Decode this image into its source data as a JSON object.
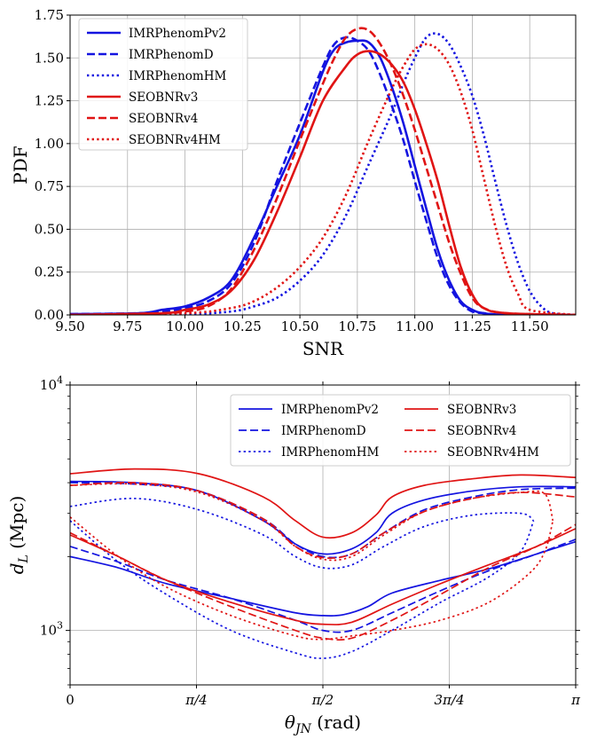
{
  "colors": {
    "IMRPhenom": "#1414e0",
    "SEOBNR": "#e01414"
  },
  "chart_data": [
    {
      "type": "line",
      "xlabel": "SNR",
      "ylabel": "PDF",
      "xlim": [
        9.5,
        11.7
      ],
      "ylim": [
        0.0,
        1.75
      ],
      "xticks": [
        9.5,
        9.75,
        10.0,
        10.25,
        10.5,
        10.75,
        11.0,
        11.25,
        11.5
      ],
      "xtick_labels": [
        "9.50",
        "9.75",
        "10.00",
        "10.25",
        "10.50",
        "10.75",
        "11.00",
        "11.25",
        "11.50"
      ],
      "yticks": [
        0.0,
        0.25,
        0.5,
        0.75,
        1.0,
        1.25,
        1.5,
        1.75
      ],
      "ytick_labels": [
        "0.00",
        "0.25",
        "0.50",
        "0.75",
        "1.00",
        "1.25",
        "1.50",
        "1.75"
      ],
      "grid": true,
      "legend_position": "top-left",
      "series": [
        {
          "name": "IMRPhenomPv2",
          "color": "#1414e0",
          "style": "solid",
          "x": [
            9.5,
            9.8,
            9.9,
            10.0,
            10.1,
            10.2,
            10.3,
            10.4,
            10.5,
            10.6,
            10.65,
            10.7,
            10.75,
            10.8,
            10.85,
            10.9,
            10.95,
            11.0,
            11.05,
            11.1,
            11.15,
            11.2,
            11.25,
            11.3,
            11.4,
            11.7
          ],
          "y": [
            0.005,
            0.01,
            0.03,
            0.05,
            0.1,
            0.2,
            0.45,
            0.75,
            1.05,
            1.42,
            1.55,
            1.59,
            1.6,
            1.59,
            1.5,
            1.33,
            1.12,
            0.87,
            0.62,
            0.38,
            0.2,
            0.08,
            0.03,
            0.01,
            0.0,
            0.0
          ]
        },
        {
          "name": "IMRPhenomD",
          "color": "#1414e0",
          "style": "dashed",
          "x": [
            9.5,
            9.8,
            9.9,
            10.0,
            10.1,
            10.2,
            10.3,
            10.4,
            10.5,
            10.6,
            10.65,
            10.7,
            10.75,
            10.8,
            10.85,
            10.9,
            10.95,
            11.0,
            11.05,
            11.1,
            11.15,
            11.2,
            11.25,
            11.3,
            11.4,
            11.7
          ],
          "y": [
            0.005,
            0.01,
            0.02,
            0.04,
            0.08,
            0.18,
            0.42,
            0.78,
            1.12,
            1.45,
            1.58,
            1.62,
            1.6,
            1.54,
            1.4,
            1.22,
            1.02,
            0.78,
            0.55,
            0.33,
            0.17,
            0.07,
            0.02,
            0.01,
            0.0,
            0.0
          ]
        },
        {
          "name": "IMRPhenomHM",
          "color": "#1414e0",
          "style": "dotted",
          "x": [
            9.5,
            10.0,
            10.2,
            10.3,
            10.4,
            10.5,
            10.6,
            10.7,
            10.8,
            10.9,
            10.95,
            11.0,
            11.05,
            11.1,
            11.15,
            11.2,
            11.25,
            11.3,
            11.35,
            11.4,
            11.45,
            11.5,
            11.55,
            11.6,
            11.7
          ],
          "y": [
            0.0,
            0.005,
            0.02,
            0.05,
            0.1,
            0.2,
            0.35,
            0.58,
            0.88,
            1.18,
            1.35,
            1.5,
            1.62,
            1.64,
            1.58,
            1.45,
            1.28,
            1.05,
            0.78,
            0.52,
            0.3,
            0.14,
            0.05,
            0.01,
            0.0
          ]
        },
        {
          "name": "SEOBNRv3",
          "color": "#e01414",
          "style": "solid",
          "x": [
            9.5,
            9.9,
            10.0,
            10.1,
            10.2,
            10.3,
            10.4,
            10.5,
            10.6,
            10.7,
            10.75,
            10.8,
            10.85,
            10.9,
            10.95,
            11.0,
            11.05,
            11.1,
            11.15,
            11.2,
            11.25,
            11.3,
            11.4,
            11.7
          ],
          "y": [
            0.0,
            0.01,
            0.03,
            0.06,
            0.14,
            0.32,
            0.6,
            0.92,
            1.25,
            1.45,
            1.52,
            1.54,
            1.52,
            1.46,
            1.36,
            1.2,
            1.0,
            0.78,
            0.52,
            0.28,
            0.12,
            0.04,
            0.01,
            0.0
          ]
        },
        {
          "name": "SEOBNRv4",
          "color": "#e01414",
          "style": "dashed",
          "x": [
            9.5,
            9.9,
            10.0,
            10.1,
            10.2,
            10.3,
            10.4,
            10.5,
            10.6,
            10.65,
            10.7,
            10.75,
            10.8,
            10.85,
            10.9,
            10.95,
            11.0,
            11.05,
            11.1,
            11.15,
            11.2,
            11.25,
            11.3,
            11.4,
            11.7
          ],
          "y": [
            0.0,
            0.01,
            0.02,
            0.05,
            0.15,
            0.38,
            0.68,
            1.02,
            1.35,
            1.5,
            1.62,
            1.67,
            1.66,
            1.58,
            1.45,
            1.28,
            1.08,
            0.86,
            0.64,
            0.42,
            0.24,
            0.1,
            0.04,
            0.01,
            0.0
          ]
        },
        {
          "name": "SEOBNRv4HM",
          "color": "#e01414",
          "style": "dotted",
          "x": [
            9.5,
            10.0,
            10.2,
            10.3,
            10.4,
            10.5,
            10.6,
            10.7,
            10.8,
            10.9,
            10.95,
            11.0,
            11.05,
            11.1,
            11.15,
            11.2,
            11.25,
            11.3,
            11.35,
            11.4,
            11.45,
            11.5,
            11.7
          ],
          "y": [
            0.0,
            0.01,
            0.04,
            0.08,
            0.16,
            0.28,
            0.45,
            0.7,
            1.02,
            1.32,
            1.45,
            1.55,
            1.58,
            1.55,
            1.46,
            1.3,
            1.08,
            0.8,
            0.52,
            0.28,
            0.12,
            0.03,
            0.0
          ]
        }
      ]
    },
    {
      "type": "line",
      "xlabel": "θ_JN (rad)",
      "ylabel": "d_L (Mpc)",
      "xlim": [
        0,
        3.14159
      ],
      "ylim": [
        600,
        10000
      ],
      "yscale": "log",
      "xticks": [
        0,
        0.7854,
        1.5708,
        2.3562,
        3.14159
      ],
      "xtick_labels": [
        "0",
        "π/4",
        "π/2",
        "3π/4",
        "π"
      ],
      "yticks": [
        1000,
        10000
      ],
      "ytick_labels": [
        "10^3",
        "10^4"
      ],
      "grid": true,
      "legend_position": "top-right",
      "series": [
        {
          "name": "IMRPhenomPv2",
          "color": "#1414e0",
          "style": "solid",
          "upper": {
            "x": [
              0.0,
              0.4,
              0.8,
              1.2,
              1.4,
              1.5708,
              1.75,
              1.9,
              2.0,
              2.2,
              2.5,
              2.8,
              3.14159
            ],
            "y": [
              4050,
              4000,
              3700,
              2800,
              2250,
              2050,
              2150,
              2500,
              3000,
              3400,
              3700,
              3850,
              3850
            ]
          },
          "lower": {
            "x": [
              0.0,
              0.3,
              0.6,
              1.0,
              1.4,
              1.5708,
              1.7,
              1.85,
              2.0,
              2.3,
              2.6,
              2.9,
              3.14159
            ],
            "y": [
              2000,
              1800,
              1550,
              1350,
              1180,
              1150,
              1160,
              1250,
              1420,
              1600,
              1780,
              2050,
              2300
            ]
          }
        },
        {
          "name": "IMRPhenomD",
          "color": "#1414e0",
          "style": "dashed",
          "upper": {
            "x": [
              0.0,
              0.4,
              0.8,
              1.2,
              1.4,
              1.5708,
              1.75,
              1.95,
              2.2,
              2.5,
              2.8,
              3.14159
            ],
            "y": [
              4000,
              3950,
              3700,
              2850,
              2250,
              2000,
              2050,
              2500,
              3100,
              3500,
              3750,
              3800
            ]
          },
          "lower": {
            "x": [
              0.0,
              0.3,
              0.6,
              1.0,
              1.4,
              1.5708,
              1.75,
              2.0,
              2.3,
              2.6,
              2.9,
              3.14159
            ],
            "y": [
              2200,
              1900,
              1600,
              1350,
              1100,
              1000,
              1000,
              1180,
              1450,
              1750,
              2050,
              2350
            ]
          }
        },
        {
          "name": "IMRPhenomHM",
          "color": "#1414e0",
          "style": "dotted",
          "upper": {
            "x": [
              0.0,
              0.4,
              0.8,
              1.2,
              1.4,
              1.5708,
              1.75,
              1.95,
              2.2,
              2.5,
              2.8,
              2.88
            ],
            "y": [
              3200,
              3450,
              3100,
              2450,
              2000,
              1800,
              1850,
              2200,
              2650,
              2950,
              3000,
              2800
            ]
          },
          "lower": {
            "x": [
              0.0,
              0.3,
              0.6,
              1.0,
              1.4,
              1.5708,
              1.75,
              2.0,
              2.3,
              2.6,
              2.8,
              2.88
            ],
            "y": [
              2800,
              1900,
              1400,
              1000,
              810,
              770,
              820,
              1000,
              1300,
              1650,
              2100,
              2800
            ]
          }
        },
        {
          "name": "SEOBNRv3",
          "color": "#e01414",
          "style": "solid",
          "upper": {
            "x": [
              0.0,
              0.4,
              0.8,
              1.2,
              1.4,
              1.5708,
              1.75,
              1.9,
              2.0,
              2.2,
              2.5,
              2.8,
              3.14159
            ],
            "y": [
              4350,
              4550,
              4350,
              3500,
              2800,
              2400,
              2500,
              2950,
              3500,
              3900,
              4150,
              4300,
              4200
            ]
          },
          "lower": {
            "x": [
              0.0,
              0.3,
              0.6,
              1.0,
              1.4,
              1.5708,
              1.75,
              2.0,
              2.3,
              2.6,
              2.9,
              3.14159
            ],
            "y": [
              2450,
              2000,
              1600,
              1300,
              1100,
              1060,
              1080,
              1280,
              1550,
              1850,
              2200,
              2600
            ]
          }
        },
        {
          "name": "SEOBNRv4",
          "color": "#e01414",
          "style": "dashed",
          "upper": {
            "x": [
              0.0,
              0.4,
              0.8,
              1.2,
              1.4,
              1.5708,
              1.75,
              1.95,
              2.2,
              2.5,
              2.8,
              3.14159
            ],
            "y": [
              3900,
              4000,
              3700,
              2850,
              2200,
              1980,
              2050,
              2500,
              3050,
              3450,
              3650,
              3500
            ]
          },
          "lower": {
            "x": [
              0.0,
              0.3,
              0.6,
              1.0,
              1.4,
              1.5708,
              1.75,
              2.0,
              2.3,
              2.6,
              2.9,
              3.14159
            ],
            "y": [
              2500,
              2000,
              1600,
              1250,
              1000,
              930,
              930,
              1100,
              1400,
              1800,
              2200,
              2700
            ]
          }
        },
        {
          "name": "SEOBNRv4HM",
          "color": "#e01414",
          "style": "dotted",
          "upper": {
            "x": [
              0.0,
              0.4,
              0.8,
              1.2,
              1.4,
              1.5708,
              1.75,
              1.95,
              2.2,
              2.5,
              2.8,
              2.95,
              3.0
            ],
            "y": [
              3900,
              3950,
              3650,
              2800,
              2200,
              1950,
              2000,
              2450,
              3050,
              3450,
              3650,
              3600,
              2800
            ]
          },
          "lower": {
            "x": [
              0.0,
              0.3,
              0.6,
              1.0,
              1.4,
              1.5708,
              1.75,
              2.0,
              2.3,
              2.6,
              2.85,
              2.95,
              3.0
            ],
            "y": [
              2900,
              2000,
              1500,
              1150,
              950,
              920,
              950,
              1000,
              1100,
              1300,
              1700,
              2100,
              2800
            ]
          }
        }
      ]
    }
  ]
}
